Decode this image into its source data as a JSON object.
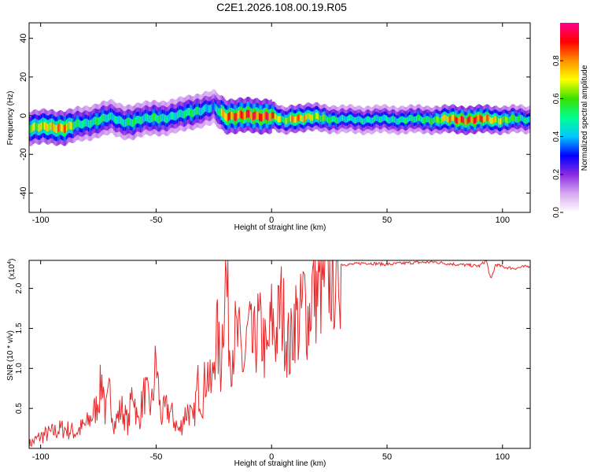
{
  "title": "C2E1.2026.108.00.19.R05",
  "chart_data": [
    {
      "type": "heatmap",
      "title": "C2E1.2026.108.00.19.R05",
      "xlabel": "Height of straight line (km)",
      "ylabel": "Frequency (Hz)",
      "xlim": [
        -105,
        112
      ],
      "ylim": [
        -50,
        48
      ],
      "xticks": [
        -100,
        -50,
        0,
        50,
        100
      ],
      "yticks": [
        -40,
        -20,
        0,
        20,
        40
      ],
      "colorbar": {
        "label": "Normalized spectral amplitude",
        "range": [
          0,
          1
        ],
        "ticks": [
          "0.0",
          "0.2",
          "0.4",
          "0.6",
          "0.8"
        ],
        "colors": [
          "#ffffff",
          "#d8a8f0",
          "#8a2be2",
          "#0000ff",
          "#00c8ff",
          "#00ff90",
          "#38e000",
          "#ffff00",
          "#ff9000",
          "#ff0000",
          "#ff0090"
        ]
      },
      "ridge": {
        "heights_km": [
          -105,
          -95,
          -90,
          -85,
          -80,
          -75,
          -70,
          -65,
          -60,
          -55,
          -50,
          -45,
          -40,
          -35,
          -30,
          -25,
          -20,
          -10,
          0,
          5,
          10,
          20,
          30,
          50,
          70,
          80,
          90,
          100,
          112
        ],
        "frequency_hz": [
          -6,
          -6,
          -6,
          -5,
          -4,
          -2,
          -1,
          -3,
          -3,
          -2,
          -1,
          -1,
          0,
          2,
          3,
          4,
          0,
          0,
          0,
          -3,
          -1,
          -1,
          -2,
          -2,
          -2,
          -2,
          -2,
          -2,
          -2
        ],
        "amplitude": [
          0.7,
          0.8,
          0.9,
          0.6,
          0.5,
          0.6,
          0.5,
          0.5,
          0.6,
          0.5,
          0.6,
          0.5,
          0.5,
          0.6,
          0.5,
          0.4,
          0.9,
          0.95,
          0.95,
          0.6,
          0.9,
          0.7,
          0.5,
          0.5,
          0.6,
          0.95,
          0.95,
          0.7,
          0.5
        ]
      }
    },
    {
      "type": "line",
      "xlabel": "Height of straight line (km)",
      "ylabel": "SNR (10 * v/v)",
      "y_multiplier": "(x10",
      "y_multiplier_exp": "4",
      "y_multiplier_close": ")",
      "xlim": [
        -105,
        112
      ],
      "ylim": [
        0,
        2.35
      ],
      "xticks": [
        -100,
        -50,
        0,
        50,
        100
      ],
      "yticks": [
        "0.5",
        "1.0",
        "1.5",
        "2.0"
      ],
      "series": [
        {
          "name": "SNR",
          "color": "#e8282a",
          "x": [
            -105,
            -100,
            -95,
            -90,
            -85,
            -80,
            -76,
            -73,
            -72,
            -70,
            -68,
            -65,
            -62,
            -60,
            -58,
            -55,
            -52,
            -50,
            -48,
            -45,
            -42,
            -40,
            -38,
            -36,
            -34,
            -32,
            -30,
            -28,
            -26,
            -24,
            -22,
            -20,
            -18,
            -16,
            -14,
            -12,
            -10,
            -8,
            -6,
            -4,
            -2,
            0,
            2,
            4,
            6,
            8,
            10,
            12,
            14,
            16,
            18,
            20,
            22,
            24,
            26,
            28,
            30,
            35,
            40,
            50,
            60,
            70,
            80,
            90,
            93,
            95,
            97,
            100,
            105,
            112
          ],
          "y": [
            0.05,
            0.15,
            0.2,
            0.25,
            0.2,
            0.3,
            0.5,
            0.9,
            0.4,
            0.7,
            0.3,
            0.5,
            0.3,
            0.8,
            0.3,
            0.7,
            0.5,
            1.1,
            0.4,
            0.5,
            0.35,
            0.2,
            0.4,
            0.5,
            0.3,
            0.8,
            0.6,
            1.0,
            0.7,
            1.5,
            1.0,
            2.35,
            1.2,
            1.4,
            1.3,
            1.0,
            1.5,
            1.2,
            1.5,
            1.4,
            1.1,
            1.6,
            1.4,
            1.8,
            1.5,
            1.2,
            1.7,
            1.5,
            1.9,
            1.6,
            2.1,
            1.9,
            2.1,
            2.2,
            2.2,
            2.25,
            2.3,
            2.3,
            2.32,
            2.3,
            2.32,
            2.33,
            2.3,
            2.28,
            2.35,
            2.1,
            2.3,
            2.27,
            2.25,
            2.28
          ]
        }
      ]
    }
  ]
}
